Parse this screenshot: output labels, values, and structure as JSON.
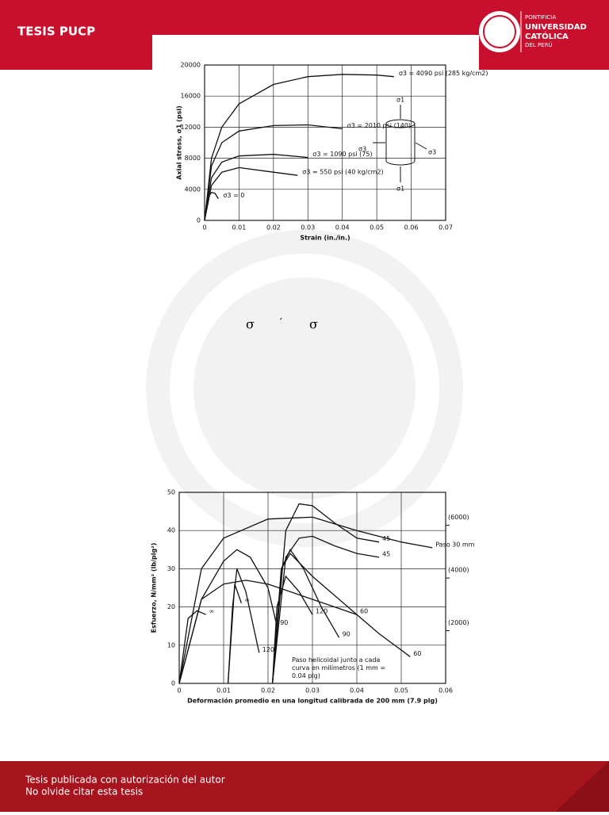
{
  "header": {
    "title": "TESIS PUCP",
    "logo": [
      "PONTIFICIA",
      "UNIVERSIDAD",
      "CATÓLICA",
      "DEL PERÚ"
    ]
  },
  "body_symbols": [
    "σ",
    "´",
    "σ"
  ],
  "footer": {
    "lines": [
      "Tesis publicada con autorización del autor",
      "No olvide citar esta tesis"
    ]
  },
  "chart_data": [
    {
      "type": "line",
      "xlabel": "Strain (in./in.)",
      "ylabel": "Axial stress, σ1 (psi)",
      "xlim": [
        0,
        0.07
      ],
      "xticks": [
        0,
        0.01,
        0.02,
        0.03,
        0.04,
        0.05,
        0.06,
        0.07
      ],
      "ylim": [
        0,
        20000
      ],
      "yticks": [
        0,
        4000,
        8000,
        12000,
        16000,
        20000
      ],
      "grid": true,
      "annotations": [
        "σ1",
        "σ3",
        "σ3",
        "σ1"
      ],
      "series": [
        {
          "name": "σ3 = 4090 psi (285 kg/cm2)",
          "color": "#111111",
          "x": [
            0,
            0.002,
            0.005,
            0.01,
            0.02,
            0.03,
            0.04,
            0.05,
            0.055
          ],
          "values": [
            0,
            8000,
            12000,
            15000,
            17500,
            18500,
            18800,
            18700,
            18500
          ]
        },
        {
          "name": "σ3 = 2010 psi (140)",
          "color": "#111111",
          "x": [
            0,
            0.002,
            0.005,
            0.01,
            0.02,
            0.03,
            0.04
          ],
          "values": [
            0,
            7000,
            10000,
            11500,
            12200,
            12300,
            11800
          ]
        },
        {
          "name": "σ3 = 1090 psi (75)",
          "color": "#111111",
          "x": [
            0,
            0.002,
            0.005,
            0.01,
            0.02,
            0.03
          ],
          "values": [
            0,
            5500,
            7500,
            8300,
            8500,
            8100
          ]
        },
        {
          "name": "σ3 = 550 psi (40 kg/cm2)",
          "color": "#111111",
          "x": [
            0,
            0.002,
            0.005,
            0.01,
            0.02,
            0.027
          ],
          "values": [
            0,
            4500,
            6200,
            6800,
            6200,
            5800
          ]
        },
        {
          "name": "σ3 = 0",
          "color": "#111111",
          "x": [
            0,
            0.001,
            0.002,
            0.003,
            0.004
          ],
          "values": [
            0,
            3000,
            3600,
            3500,
            2800
          ]
        }
      ]
    },
    {
      "type": "line",
      "xlabel": "Deformación promedio en una longitud calibrada de 200 mm (7.9 plg)",
      "ylabel": "Esfuerzo, N/mm² (lb/plg²)",
      "annotation": "Paso helicoidal junto a cada curva en milímetros (1 mm = 0.04 plg)",
      "xlim": [
        0,
        0.06
      ],
      "xticks": [
        0,
        0.01,
        0.02,
        0.03,
        0.04,
        0.05,
        0.06
      ],
      "ylim": [
        0,
        50
      ],
      "yticks": [
        0,
        10,
        20,
        30,
        40,
        50
      ],
      "y2lim": [
        0,
        7252
      ],
      "y2ticks": [
        {
          "value": 2000,
          "label": "(2000)"
        },
        {
          "value": 4000,
          "label": "(4000)"
        },
        {
          "value": 6000,
          "label": "(6000)"
        }
      ],
      "grid": true,
      "series": [
        {
          "name": "Paso 30 mm",
          "color": "#111111",
          "x": [
            0,
            0.005,
            0.01,
            0.02,
            0.03,
            0.04,
            0.05,
            0.057
          ],
          "values": [
            0,
            30,
            38,
            43,
            43.5,
            40,
            37,
            35.5
          ]
        },
        {
          "name": "45",
          "color": "#111111",
          "x": [
            0.021,
            0.024,
            0.027,
            0.03,
            0.035,
            0.04,
            0.045
          ],
          "values": [
            0,
            40,
            47,
            46.5,
            42,
            38,
            37
          ]
        },
        {
          "name": "45",
          "color": "#111111",
          "x": [
            0.021,
            0.024,
            0.027,
            0.03,
            0.035,
            0.04,
            0.045
          ],
          "values": [
            0,
            33,
            38,
            38.5,
            36,
            34,
            33
          ]
        },
        {
          "name": "60",
          "color": "#111111",
          "x": [
            0,
            0.005,
            0.01,
            0.015,
            0.02,
            0.03,
            0.035,
            0.04
          ],
          "values": [
            0,
            22,
            26,
            27,
            26,
            22,
            20,
            18
          ]
        },
        {
          "name": "60",
          "color": "#111111",
          "x": [
            0.021,
            0.023,
            0.025,
            0.03,
            0.035,
            0.04,
            0.045,
            0.052
          ],
          "values": [
            0,
            30,
            34,
            28,
            23,
            18,
            13,
            7
          ]
        },
        {
          "name": "90",
          "color": "#111111",
          "x": [
            0,
            0.005,
            0.01,
            0.013,
            0.016,
            0.02,
            0.022
          ],
          "values": [
            0,
            22,
            32,
            35,
            33,
            25,
            15
          ]
        },
        {
          "name": "90",
          "color": "#111111",
          "x": [
            0.021,
            0.023,
            0.025,
            0.028,
            0.032,
            0.036
          ],
          "values": [
            0,
            30,
            35,
            30,
            20,
            12
          ]
        },
        {
          "name": "120",
          "color": "#111111",
          "x": [
            0.011,
            0.012,
            0.013,
            0.015,
            0.018
          ],
          "values": [
            0,
            20,
            30,
            24,
            8
          ]
        },
        {
          "name": "120",
          "color": "#111111",
          "x": [
            0.021,
            0.022,
            0.024,
            0.027,
            0.03
          ],
          "values": [
            0,
            20,
            28,
            24,
            18
          ]
        },
        {
          "name": "∞",
          "color": "#111111",
          "x": [
            0,
            0.002,
            0.004,
            0.006
          ],
          "values": [
            0,
            17,
            19,
            18
          ]
        },
        {
          "name": "∞",
          "color": "#111111",
          "x": [
            0.011,
            0.0125,
            0.014
          ],
          "values": [
            0,
            26,
            21
          ]
        }
      ]
    }
  ]
}
